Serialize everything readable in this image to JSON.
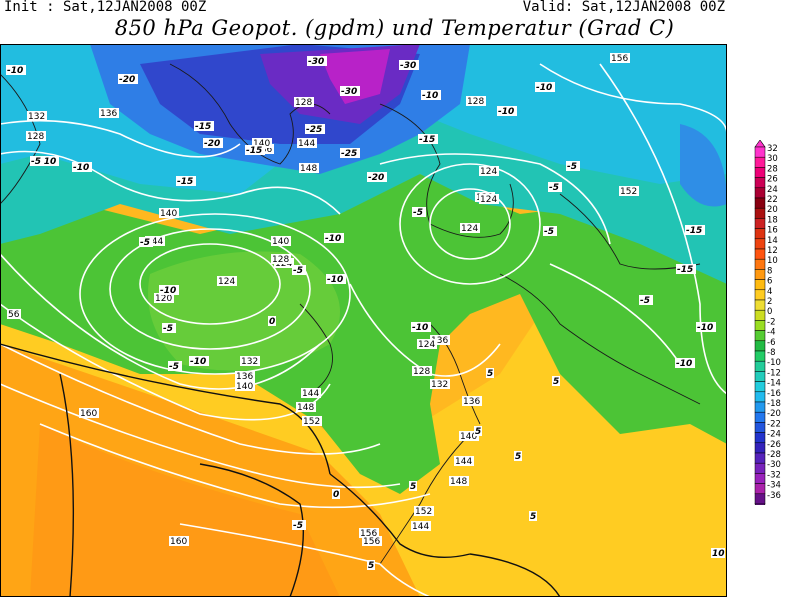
{
  "header": {
    "init_text": "Init : Sat,12JAN2008 00Z",
    "valid_text": "Valid: Sat,12JAN2008 00Z",
    "title": "850 hPa Geopot. (gpdm) und Temperatur (Grad C)"
  },
  "legend": {
    "values": [
      "32",
      "30",
      "28",
      "26",
      "24",
      "22",
      "20",
      "18",
      "16",
      "14",
      "12",
      "10",
      "8",
      "6",
      "4",
      "2",
      "0",
      "-2",
      "-4",
      "-6",
      "-8",
      "-10",
      "-12",
      "-14",
      "-16",
      "-18",
      "-20",
      "-22",
      "-24",
      "-26",
      "-28",
      "-30",
      "-32",
      "-34",
      "-36"
    ],
    "colors": [
      "#ff33cc",
      "#ff1a99",
      "#ee0077",
      "#cc0055",
      "#aa0033",
      "#880011",
      "#aa1111",
      "#cc2222",
      "#dd3311",
      "#ee4411",
      "#ff5511",
      "#ff7711",
      "#ff9911",
      "#ffbb11",
      "#ffcc22",
      "#eedd33",
      "#ccdd22",
      "#99dd22",
      "#55cc33",
      "#22bb44",
      "#22cc66",
      "#22cc99",
      "#22ccbb",
      "#22ccdd",
      "#22bbee",
      "#2299ee",
      "#2277ee",
      "#2255dd",
      "#2233cc",
      "#3322bb",
      "#5522bb",
      "#7722bb",
      "#9922bb",
      "#aa22aa",
      "#661188"
    ]
  },
  "map": {
    "geopotential_labels": [
      "132",
      "128",
      "136",
      "140",
      "144",
      "120",
      "124",
      "124",
      "128",
      "132",
      "136",
      "140",
      "144",
      "148",
      "152",
      "156",
      "160",
      "160",
      "140",
      "136",
      "132",
      "136",
      "144",
      "140",
      "128",
      "124",
      "148",
      "144",
      "152",
      "156",
      "124",
      "128",
      "120",
      "124",
      "124",
      "128",
      "136",
      "140",
      "152",
      "156",
      "144",
      "148",
      "56"
    ],
    "temperature_labels": [
      "-10",
      "-20",
      "-30",
      "-30",
      "-30",
      "-25",
      "-25",
      "-20",
      "-15",
      "-15",
      "-15",
      "-20",
      "-10",
      "-10",
      "-5",
      "-5",
      "-10",
      "-5",
      "-5",
      "-10",
      "-5",
      "-10",
      "-10",
      "-5",
      "-10",
      "-10",
      "-15",
      "-10",
      "-10",
      "-5",
      "-5",
      "-5",
      "0",
      "0",
      "-5",
      "5",
      "5",
      "5",
      "5",
      "5",
      "5",
      "5",
      "10",
      "-15",
      "-15",
      "-10",
      "-10",
      "-5"
    ]
  }
}
